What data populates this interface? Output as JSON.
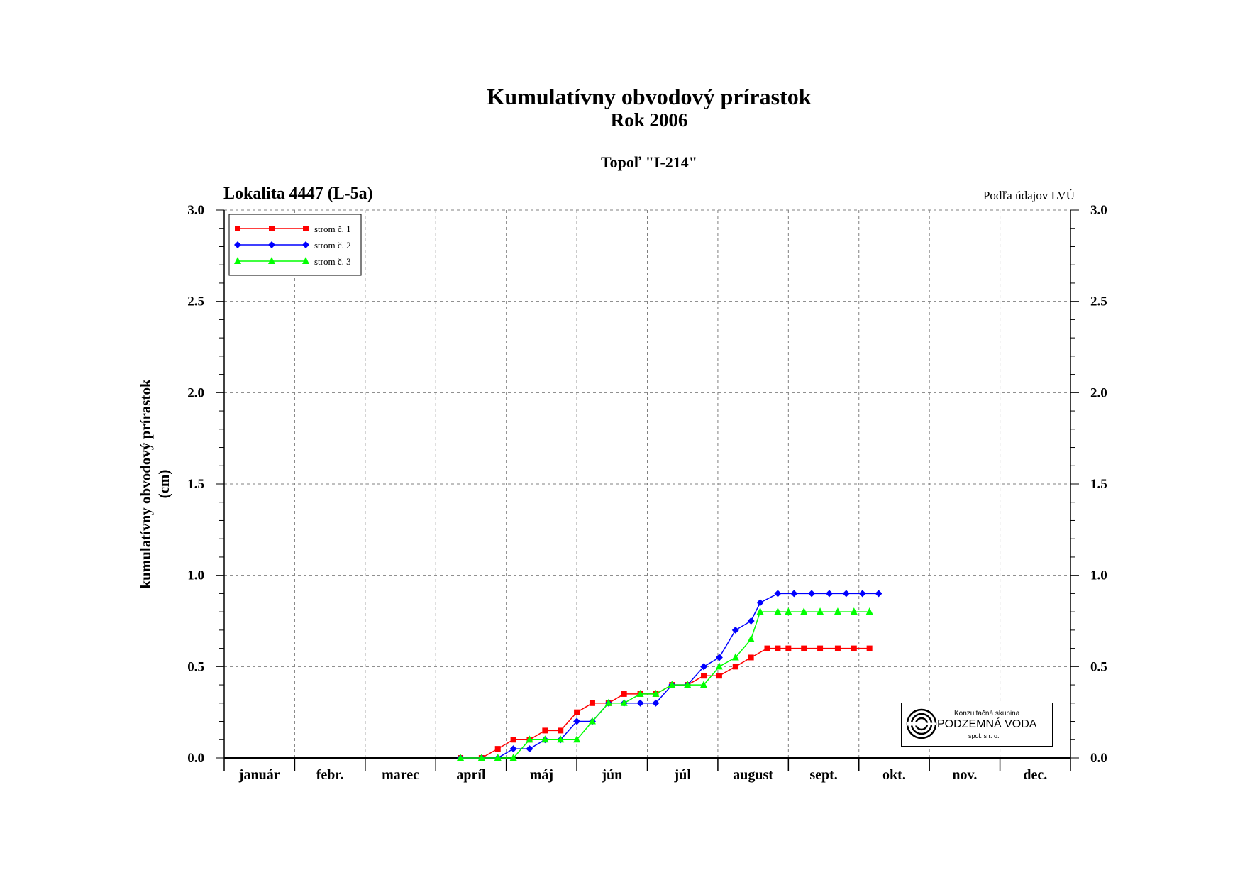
{
  "header": {
    "title": "Kumulatívny obvodový prírastok",
    "subtitle": "Rok 2006",
    "tree": "Topoľ \"I-214\"",
    "location": "Lokalita 4447 (L-5a)",
    "source": "Podľa údajov LVÚ"
  },
  "logo": {
    "top_text": "Konzultačná skupina",
    "main_text": "PODZEMNÁ VODA",
    "bottom_text": "spol. s r. o."
  },
  "chart_data": {
    "type": "line",
    "ylabel": "kumulatívny obvodový prírastok (cm)",
    "ylabel_lines": [
      "kumulatívny obvodový prírastok",
      "(cm)"
    ],
    "ylim": [
      0,
      3
    ],
    "yticks": [
      "0.0",
      "0.5",
      "1.0",
      "1.5",
      "2.0",
      "2.5",
      "3.0"
    ],
    "xlim": [
      0,
      12
    ],
    "months": [
      "január",
      "febr.",
      "marec",
      "apríl",
      "máj",
      "jún",
      "júl",
      "august",
      "sept.",
      "okt.",
      "nov.",
      "dec."
    ],
    "grid": true,
    "legend_position": "top-left",
    "series": [
      {
        "name": "strom č. 1",
        "color": "#ff0000",
        "marker": "square",
        "x": [
          3.35,
          3.65,
          3.88,
          4.1,
          4.33,
          4.55,
          4.77,
          5.0,
          5.22,
          5.45,
          5.67,
          5.9,
          6.12,
          6.35,
          6.57,
          6.8,
          7.02,
          7.25,
          7.47,
          7.7,
          7.85,
          8.0,
          8.22,
          8.45,
          8.7,
          8.93,
          9.15
        ],
        "y": [
          0.0,
          0.0,
          0.05,
          0.1,
          0.1,
          0.15,
          0.15,
          0.25,
          0.3,
          0.3,
          0.35,
          0.35,
          0.35,
          0.4,
          0.4,
          0.45,
          0.45,
          0.5,
          0.55,
          0.6,
          0.6,
          0.6,
          0.6,
          0.6,
          0.6,
          0.6,
          0.6
        ]
      },
      {
        "name": "strom č. 2",
        "color": "#0000ff",
        "marker": "diamond",
        "x": [
          3.35,
          3.65,
          3.88,
          4.1,
          4.33,
          4.55,
          4.77,
          5.0,
          5.22,
          5.45,
          5.67,
          5.9,
          6.12,
          6.35,
          6.57,
          6.8,
          7.02,
          7.25,
          7.47,
          7.6,
          7.85,
          8.08,
          8.33,
          8.58,
          8.82,
          9.05,
          9.28
        ],
        "y": [
          0.0,
          0.0,
          0.0,
          0.05,
          0.05,
          0.1,
          0.1,
          0.2,
          0.2,
          0.3,
          0.3,
          0.3,
          0.3,
          0.4,
          0.4,
          0.5,
          0.55,
          0.7,
          0.75,
          0.85,
          0.9,
          0.9,
          0.9,
          0.9,
          0.9,
          0.9,
          0.9
        ]
      },
      {
        "name": "strom č. 3",
        "color": "#00ff00",
        "marker": "triangle",
        "x": [
          3.35,
          3.65,
          3.88,
          4.1,
          4.33,
          4.55,
          4.77,
          5.0,
          5.22,
          5.45,
          5.67,
          5.9,
          6.12,
          6.35,
          6.57,
          6.8,
          7.02,
          7.25,
          7.47,
          7.6,
          7.85,
          8.0,
          8.22,
          8.45,
          8.7,
          8.93,
          9.15
        ],
        "y": [
          0.0,
          0.0,
          0.0,
          0.0,
          0.1,
          0.1,
          0.1,
          0.1,
          0.2,
          0.3,
          0.3,
          0.35,
          0.35,
          0.4,
          0.4,
          0.4,
          0.5,
          0.55,
          0.65,
          0.8,
          0.8,
          0.8,
          0.8,
          0.8,
          0.8,
          0.8,
          0.8
        ]
      }
    ]
  }
}
